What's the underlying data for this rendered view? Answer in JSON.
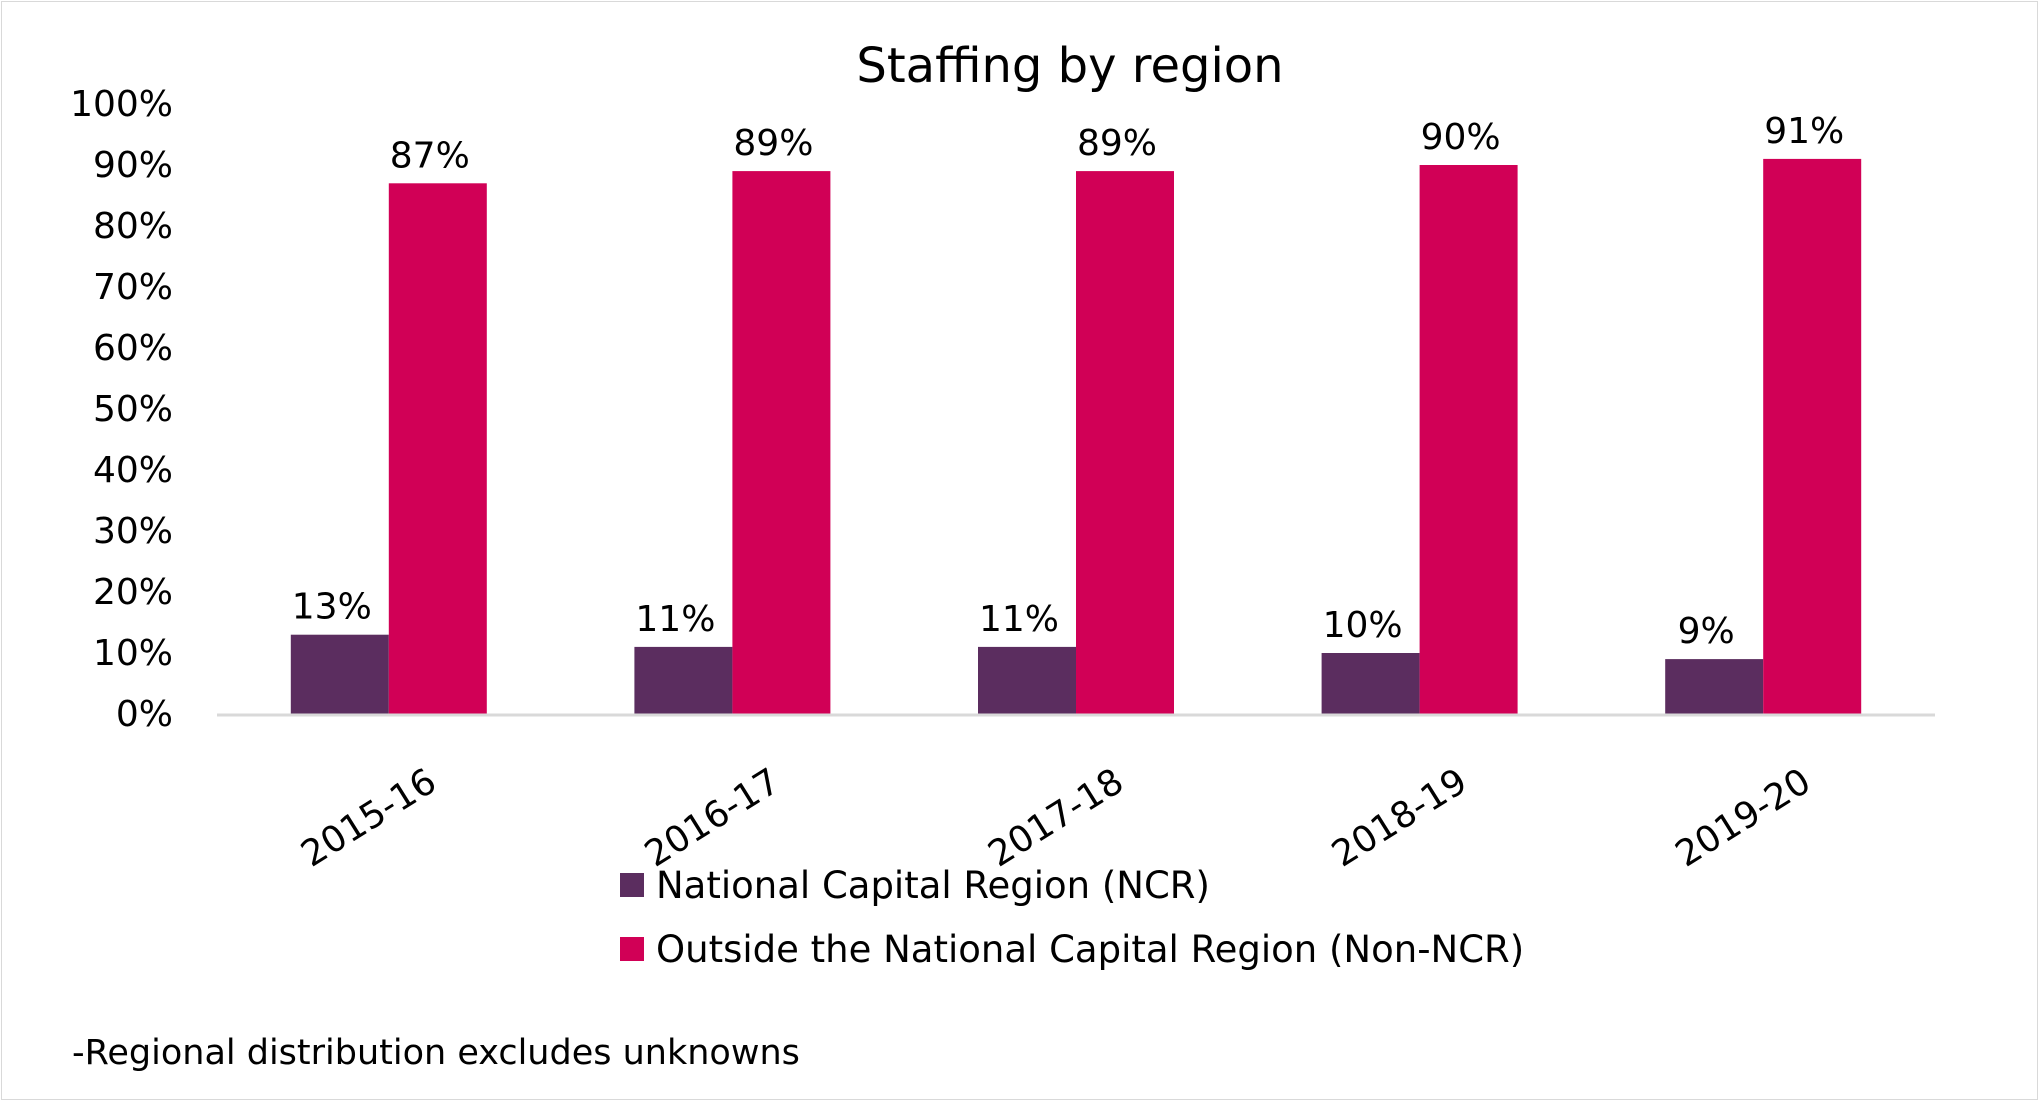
{
  "chart_data": {
    "type": "bar",
    "title": "Staffing by region",
    "categories": [
      "2015-16",
      "2016-17",
      "2017-18",
      "2018-19",
      "2019-20"
    ],
    "series": [
      {
        "name": "National Capital Region (NCR)",
        "color": "#5b2d5f",
        "values": [
          13,
          11,
          11,
          10,
          9
        ],
        "labels": [
          "13%",
          "11%",
          "11%",
          "10%",
          "9%"
        ]
      },
      {
        "name": "Outside the National Capital Region (Non-NCR)",
        "color": "#d10056",
        "values": [
          87,
          89,
          89,
          90,
          91
        ],
        "labels": [
          "87%",
          "89%",
          "89%",
          "90%",
          "91%"
        ]
      }
    ],
    "ylim": [
      0,
      100
    ],
    "yticks": [
      "0%",
      "10%",
      "20%",
      "30%",
      "40%",
      "50%",
      "60%",
      "70%",
      "80%",
      "90%",
      "100%"
    ],
    "xlabel": "",
    "ylabel": "",
    "legend_position": "bottom"
  },
  "footnote": "-Regional distribution excludes unknowns"
}
